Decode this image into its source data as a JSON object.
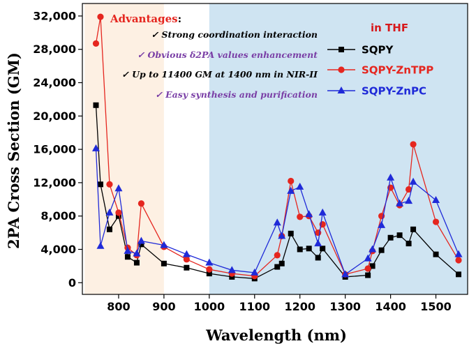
{
  "chart_data": {
    "type": "line",
    "xlabel": "Wavelength (nm)",
    "ylabel": "2PA Cross Section (GM)",
    "xlim": [
      720,
      1570
    ],
    "ylim": [
      -1400,
      33500
    ],
    "x_ticks": [
      800,
      900,
      1000,
      1100,
      1200,
      1300,
      1400,
      1500
    ],
    "x_tick_labels": [
      "800",
      "900",
      "1000",
      "1100",
      "1200",
      "1300",
      "1400",
      "1500"
    ],
    "y_ticks": [
      0,
      4000,
      8000,
      12000,
      16000,
      20000,
      24000,
      28000,
      32000
    ],
    "y_tick_labels": [
      "0",
      "4,000",
      "8,000",
      "12,000",
      "16,000",
      "20,000",
      "24,000",
      "28,000",
      "32,000"
    ],
    "shaded_regions": [
      {
        "x": [
          725,
          900
        ],
        "color": "#fdf0e3"
      },
      {
        "x": [
          1000,
          1570
        ],
        "color": "#cfe4f2"
      }
    ],
    "grid": false,
    "legend_title": "in THF",
    "legend_title_color": "#d7191c",
    "legend_position": "top-right",
    "series": [
      {
        "name": "SQPY",
        "color": "#000000",
        "marker": "square",
        "x": [
          750,
          760,
          780,
          800,
          820,
          840,
          850,
          900,
          950,
          1000,
          1050,
          1100,
          1150,
          1160,
          1180,
          1200,
          1220,
          1240,
          1250,
          1300,
          1350,
          1360,
          1380,
          1400,
          1420,
          1440,
          1450,
          1500,
          1550
        ],
        "y": [
          21300,
          11800,
          6400,
          8000,
          3100,
          2400,
          4600,
          2300,
          1800,
          1100,
          700,
          500,
          1900,
          2300,
          5900,
          4000,
          4100,
          3000,
          4100,
          700,
          900,
          2000,
          3900,
          5400,
          5700,
          4700,
          6400,
          3400,
          1000
        ]
      },
      {
        "name": "SQPY-ZnTPP",
        "color": "#e5261f",
        "marker": "circle",
        "x": [
          750,
          760,
          780,
          800,
          820,
          840,
          850,
          900,
          950,
          1000,
          1050,
          1100,
          1150,
          1160,
          1180,
          1200,
          1220,
          1240,
          1250,
          1300,
          1350,
          1360,
          1380,
          1400,
          1420,
          1440,
          1450,
          1500,
          1550
        ],
        "y": [
          28700,
          31900,
          11800,
          8400,
          4200,
          3300,
          9500,
          4300,
          2800,
          1600,
          1100,
          800,
          3300,
          5600,
          12200,
          7900,
          8000,
          6000,
          7000,
          1000,
          1700,
          3800,
          8000,
          11400,
          9300,
          11200,
          16600,
          7300,
          2700
        ]
      },
      {
        "name": "SQPY-ZnPC",
        "color": "#1f2ad8",
        "marker": "triangle",
        "x": [
          750,
          760,
          780,
          800,
          820,
          840,
          850,
          900,
          950,
          1000,
          1050,
          1100,
          1150,
          1160,
          1180,
          1200,
          1220,
          1240,
          1250,
          1300,
          1350,
          1360,
          1380,
          1400,
          1420,
          1440,
          1450,
          1500,
          1550
        ],
        "y": [
          16100,
          4400,
          8400,
          11300,
          3800,
          3500,
          5000,
          4500,
          3400,
          2400,
          1500,
          1200,
          7200,
          5600,
          11000,
          11500,
          8200,
          4700,
          8400,
          1000,
          2900,
          4000,
          6900,
          12600,
          9500,
          9800,
          12100,
          9900,
          3400
        ]
      }
    ]
  },
  "annotations": {
    "advantages_label": "Advantages",
    "advantages_colon": ":",
    "advantages_color": "#e5261f",
    "items": [
      {
        "text": "✓ Strong coordination interaction",
        "color": "#000000"
      },
      {
        "text": "✓ Obvious δ2PA values enhancement",
        "color": "#7a3fa6"
      },
      {
        "text": "✓ Up to 11400 GM at 1400 nm in NIR-II",
        "color": "#000000"
      },
      {
        "text": "✓ Easy synthesis and purification",
        "color": "#7a3fa6"
      }
    ]
  }
}
